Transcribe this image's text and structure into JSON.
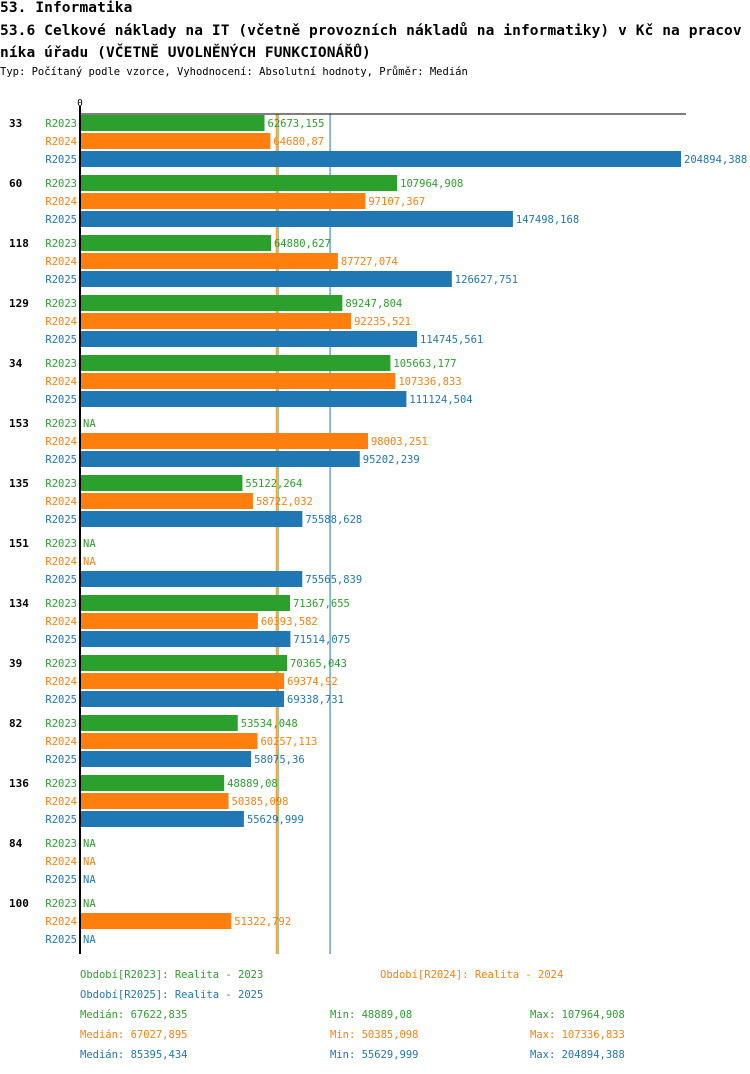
{
  "header": {
    "section": "53. Informatika",
    "title": "53.6 Celkové náklady na IT (včetně provozních nákladů na informatiky) v Kč na pracovníka úřadu (VČETNĚ UVOLNĚNÝCH FUNKCIONÁŘŮ)",
    "subtitle": "Typ: Počítaný podle vzorce, Vyhodnocení: Absolutní hodnoty, Průměr: Medián"
  },
  "colors": {
    "R2023": "#2ca02c",
    "R2024": "#ff7f0e",
    "R2025": "#1f77b4",
    "axis": "#000000"
  },
  "chart_data": {
    "type": "bar",
    "orientation": "horizontal",
    "title": "53.6 Celkové náklady na IT (včetně provozních nákladů na informatiky) v Kč na pracovníka úřadu (VČETNĚ UVOLNĚNÝCH FUNKCIONÁŘŮ)",
    "xlabel": "",
    "ylabel": "",
    "x_tick_labels": [
      "0"
    ],
    "xlim": [
      0,
      204894.388
    ],
    "missing_label": "NA",
    "categories": [
      "33",
      "60",
      "118",
      "129",
      "34",
      "153",
      "135",
      "151",
      "134",
      "39",
      "82",
      "136",
      "84",
      "100"
    ],
    "series": [
      {
        "name": "R2023",
        "values": [
          62673.155,
          107964.908,
          64880.627,
          89247.804,
          105663.177,
          null,
          55122.264,
          null,
          71367.655,
          70365.043,
          53534.048,
          48889.08,
          null,
          null
        ],
        "labels": [
          "62673,155",
          "107964,908",
          "64880,627",
          "89247,804",
          "105663,177",
          "NA",
          "55122,264",
          "NA",
          "71367,655",
          "70365,043",
          "53534,048",
          "48889,08",
          "NA",
          "NA"
        ]
      },
      {
        "name": "R2024",
        "values": [
          64680.87,
          97107.367,
          87727.074,
          92235.521,
          107336.833,
          98003.251,
          58722.032,
          null,
          60393.582,
          69374.92,
          60257.113,
          50385.098,
          null,
          51322.792
        ],
        "labels": [
          "64680,87",
          "97107,367",
          "87727,074",
          "92235,521",
          "107336,833",
          "98003,251",
          "58722,032",
          "NA",
          "60393,582",
          "69374,92",
          "60257,113",
          "50385,098",
          "NA",
          "51322,792"
        ]
      },
      {
        "name": "R2025",
        "values": [
          204894.388,
          147498.168,
          126627.751,
          114745.561,
          111124.504,
          95202.239,
          75588.628,
          75565.839,
          71514.075,
          69338.731,
          58075.36,
          55629.999,
          null,
          null
        ],
        "labels": [
          "204894,388",
          "147498,168",
          "126627,751",
          "114745,561",
          "111124,504",
          "95202,239",
          "75588,628",
          "75565,839",
          "71514,075",
          "69338,731",
          "58075,36",
          "55629,999",
          "NA",
          "NA"
        ]
      }
    ],
    "median_lines": [
      {
        "series": "R2023",
        "value": 67622.835
      },
      {
        "series": "R2024",
        "value": 67027.895
      },
      {
        "series": "R2025",
        "value": 85395.434
      }
    ],
    "legend": {
      "placement": "bottom",
      "periods": [
        {
          "series": "R2023",
          "text": "Období[R2023]: Realita - 2023"
        },
        {
          "series": "R2024",
          "text": "Období[R2024]: Realita - 2024"
        },
        {
          "series": "R2025",
          "text": "Období[R2025]: Realita - 2025"
        }
      ],
      "stats": [
        {
          "series": "R2023",
          "median": "Medián: 67622,835",
          "min": "Min: 48889,08",
          "max": "Max: 107964,908"
        },
        {
          "series": "R2024",
          "median": "Medián: 67027,895",
          "min": "Min: 50385,098",
          "max": "Max: 107336,833"
        },
        {
          "series": "R2025",
          "median": "Medián: 85395,434",
          "min": "Min: 55629,999",
          "max": "Max: 204894,388"
        }
      ]
    }
  }
}
